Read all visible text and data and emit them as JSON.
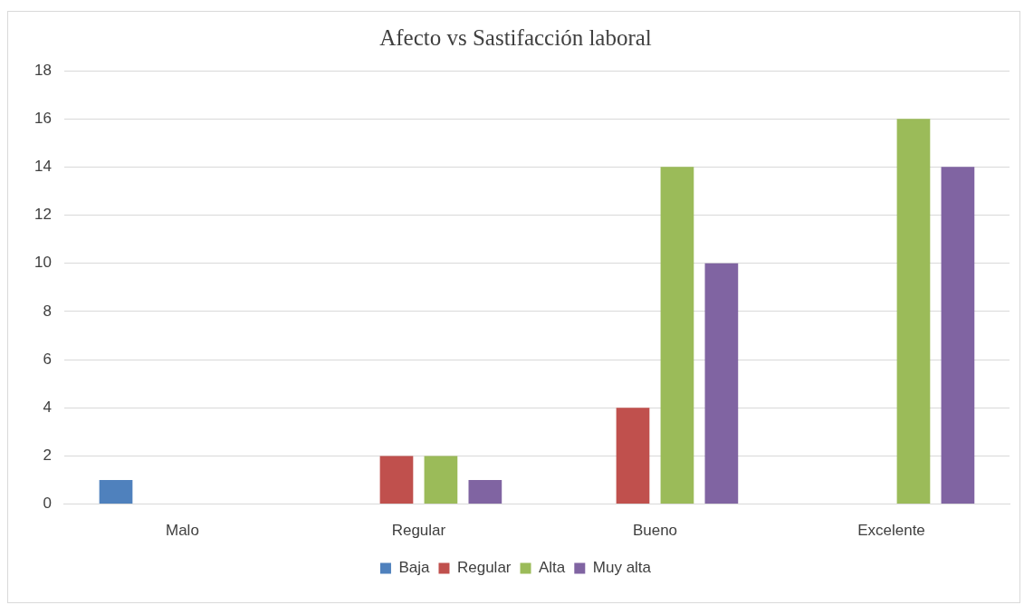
{
  "chart_data": {
    "type": "bar",
    "title": "Afecto vs Sastifacción laboral",
    "categories": [
      "Malo",
      "Regular",
      "Bueno",
      "Excelente"
    ],
    "series": [
      {
        "name": "Baja",
        "color": "#4f81bd",
        "values": [
          1,
          0,
          0,
          0
        ]
      },
      {
        "name": "Regular",
        "color": "#c0504d",
        "values": [
          0,
          2,
          4,
          0
        ]
      },
      {
        "name": "Alta",
        "color": "#9bbb59",
        "values": [
          0,
          2,
          14,
          16
        ]
      },
      {
        "name": "Muy alta",
        "color": "#8064a2",
        "values": [
          0,
          1,
          10,
          14
        ]
      }
    ],
    "ylim": [
      0,
      18
    ],
    "yticks": [
      0,
      2,
      4,
      6,
      8,
      10,
      12,
      14,
      16,
      18
    ],
    "grid": "y",
    "legend": "bottom"
  }
}
